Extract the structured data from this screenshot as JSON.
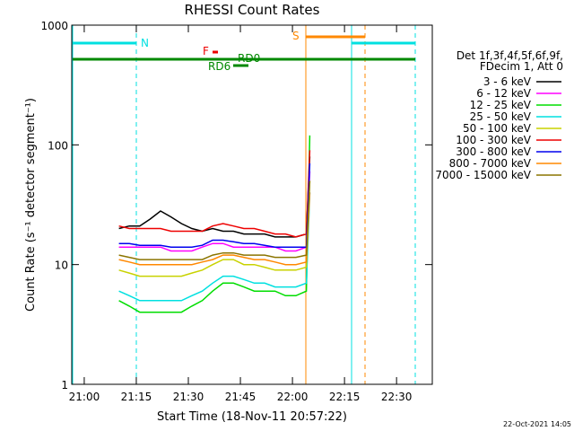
{
  "chart_data": {
    "type": "line",
    "title": "RHESSI Count Rates",
    "x_label": "Start Time (18-Nov-11 20:57:22)",
    "y_label": "Count Rate (s⁻¹ detector segment⁻¹)",
    "legend_header": [
      "Det 1f,3f,4f,5f,6f,9f,",
      "FDecim 1, Att 0"
    ],
    "timestamp": "22-Oct-2021 14:05",
    "annotations": [
      "N",
      "S",
      "F",
      "RD6",
      "RD0"
    ],
    "log_y": true,
    "legend": "right",
    "xlim": [
      -3.6,
      100.3
    ],
    "xticks": [
      {
        "value": 0,
        "label": "21:00"
      },
      {
        "value": 15,
        "label": "21:15"
      },
      {
        "value": 30,
        "label": "21:30"
      },
      {
        "value": 45,
        "label": "21:45"
      },
      {
        "value": 60,
        "label": "22:00"
      },
      {
        "value": 75,
        "label": "22:15"
      },
      {
        "value": 90,
        "label": "22:30"
      }
    ],
    "ylim": [
      1,
      1000
    ],
    "yticks": [
      1,
      10,
      100,
      1000
    ],
    "x": [
      10,
      13,
      16,
      19,
      22,
      25,
      28,
      31,
      34,
      37,
      40,
      43,
      46,
      49,
      52,
      55,
      58,
      61,
      64,
      65
    ],
    "series": [
      {
        "name": "3 - 6 keV",
        "color": "#000000",
        "values": [
          20,
          21,
          21,
          24,
          28,
          25,
          22,
          20,
          19,
          20,
          19,
          19,
          18,
          18,
          18,
          17,
          17,
          17,
          18,
          80
        ]
      },
      {
        "name": "6 - 12 keV",
        "color": "#ff00ff",
        "values": [
          14,
          14,
          14,
          14,
          14,
          13,
          13,
          13,
          14,
          15,
          15,
          14,
          14,
          14,
          14,
          14,
          13,
          13,
          14,
          60
        ]
      },
      {
        "name": "12 - 25 keV",
        "color": "#00dd00",
        "values": [
          5,
          4.5,
          4,
          4,
          4,
          4,
          4,
          4.5,
          5,
          6,
          7,
          7,
          6.5,
          6,
          6,
          6,
          5.5,
          5.5,
          6,
          120
        ]
      },
      {
        "name": "25 - 50 keV",
        "color": "#00e0e0",
        "values": [
          6,
          5.5,
          5,
          5,
          5,
          5,
          5,
          5.5,
          6,
          7,
          8,
          8,
          7.5,
          7,
          7,
          6.5,
          6.5,
          6.5,
          7,
          40
        ]
      },
      {
        "name": "50 - 100 keV",
        "color": "#c8d200",
        "values": [
          9,
          8.5,
          8,
          8,
          8,
          8,
          8,
          8.5,
          9,
          10,
          11,
          11,
          10,
          10,
          9.5,
          9,
          9,
          9,
          9.5,
          50
        ]
      },
      {
        "name": "100 - 300 keV",
        "color": "#ee0000",
        "values": [
          21,
          20,
          20,
          20,
          20,
          19,
          19,
          19,
          19,
          21,
          22,
          21,
          20,
          20,
          19,
          18,
          18,
          17,
          18,
          90
        ]
      },
      {
        "name": "300 - 800 keV",
        "color": "#0000ee",
        "values": [
          15,
          15,
          14.5,
          14.5,
          14.5,
          14,
          14,
          14,
          14.5,
          16,
          16,
          15.5,
          15,
          15,
          14.5,
          14,
          14,
          14,
          14,
          70
        ]
      },
      {
        "name": "800 - 7000 keV",
        "color": "#ff8800",
        "values": [
          11,
          10.5,
          10,
          10,
          10,
          10,
          10,
          10,
          10.5,
          11,
          12,
          12,
          11.5,
          11,
          11,
          10.5,
          10,
          10,
          10.5,
          40
        ]
      },
      {
        "name": "7000 - 15000 keV",
        "color": "#8b7500",
        "values": [
          12,
          11.5,
          11,
          11,
          11,
          11,
          11,
          11,
          11,
          12,
          12.5,
          12.5,
          12,
          12,
          12,
          11.5,
          11.5,
          11.5,
          12,
          50
        ]
      }
    ]
  }
}
